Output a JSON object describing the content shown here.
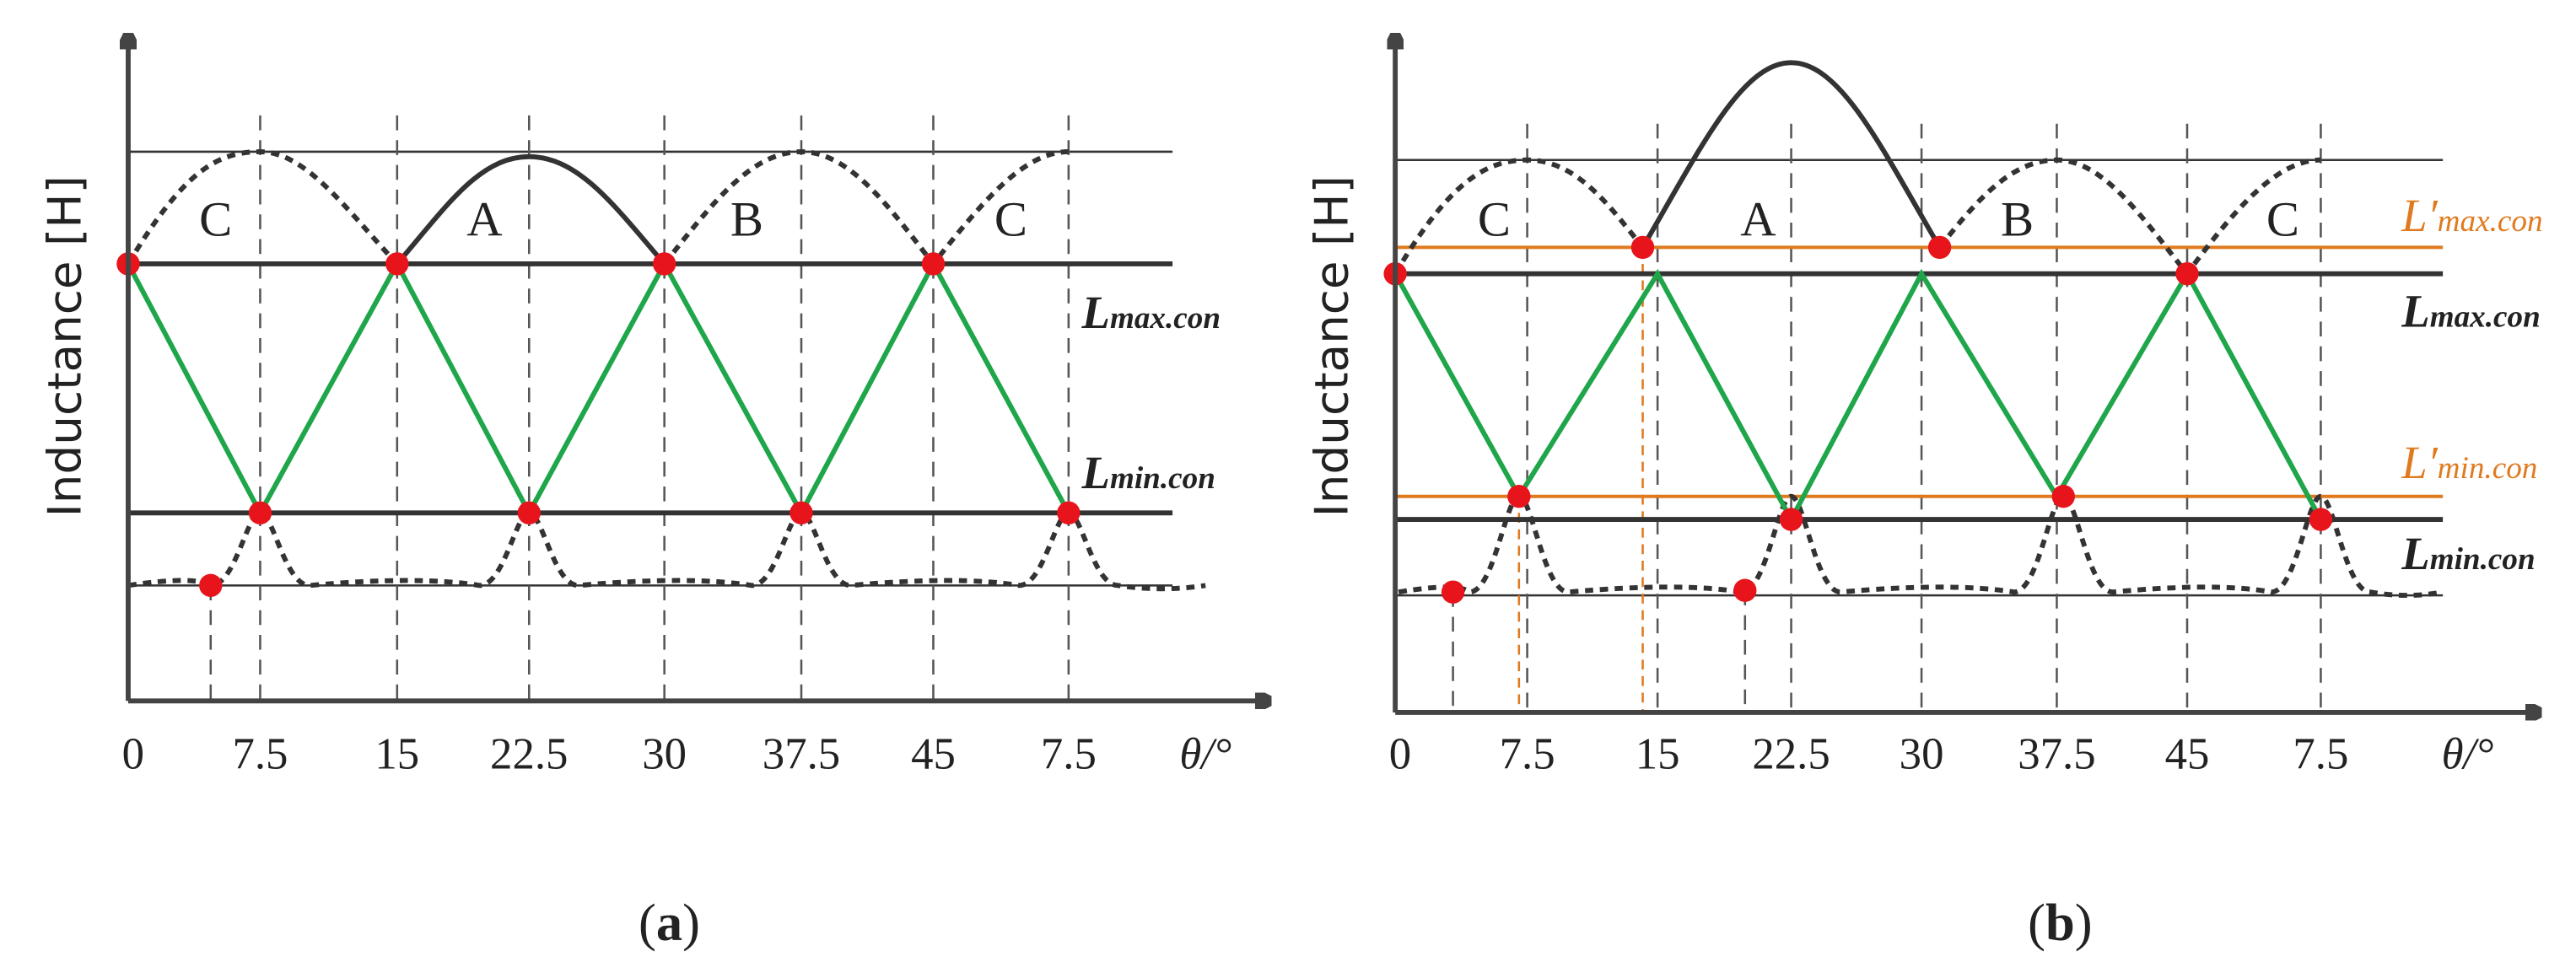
{
  "panel_a": {
    "y_label": "Inductance [H]",
    "x_ticks": [
      "0",
      "7.5",
      "15",
      "22.5",
      "30",
      "37.5",
      "45",
      "7.5"
    ],
    "x_label": "θ/°",
    "phases": [
      "C",
      "A",
      "B",
      "C"
    ],
    "l_max": {
      "symbol": "L",
      "sub": "max.con"
    },
    "l_min": {
      "symbol": "L",
      "sub": "min.con"
    },
    "caption": [
      "(",
      "a",
      ")"
    ]
  },
  "panel_b": {
    "y_label": "Inductance [H]",
    "x_ticks": [
      "0",
      "7.5",
      "15",
      "22.5",
      "30",
      "37.5",
      "45",
      "7.5"
    ],
    "x_label": "θ/°",
    "phases": [
      "C",
      "A",
      "B",
      "C"
    ],
    "l_max_prime": {
      "symbol": "L′",
      "sub": "max.con"
    },
    "l_max": {
      "symbol": "L",
      "sub": "max.con"
    },
    "l_min_prime": {
      "symbol": "L′",
      "sub": "min.con"
    },
    "l_min": {
      "symbol": "L",
      "sub": "min.con"
    },
    "caption": [
      "(",
      "b",
      ")"
    ]
  }
}
